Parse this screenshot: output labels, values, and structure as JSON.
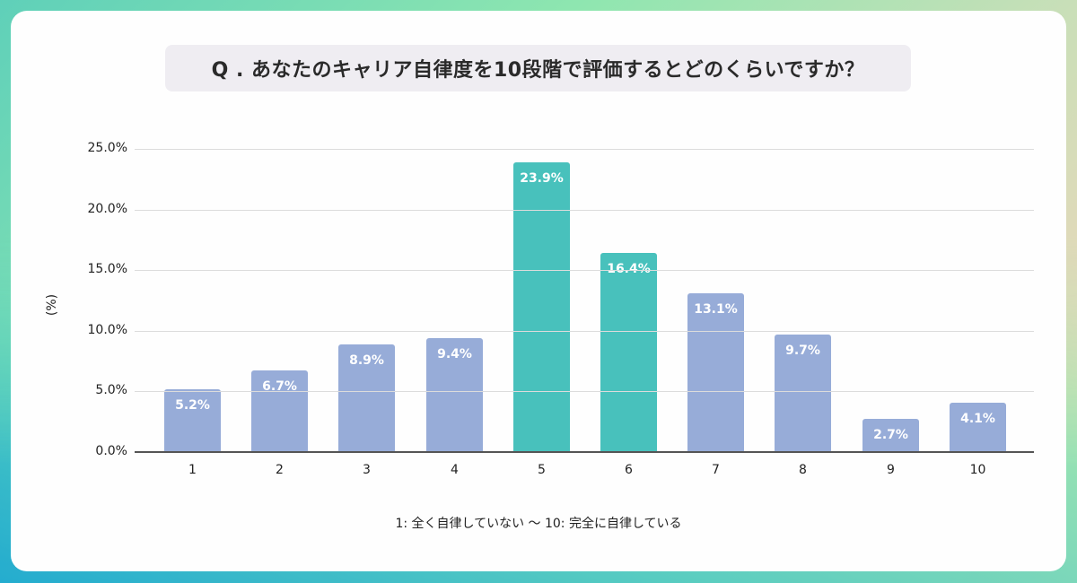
{
  "title": "Q . あなたのキャリア自律度を10段階で評価するとどのくらいですか？",
  "colors": {
    "highlight": "#48c1bc",
    "normal": "#97acd8",
    "grid": "#dcdcdc",
    "title_bg": "#efedf2"
  },
  "chart_data": {
    "type": "bar",
    "title": "Q . あなたのキャリア自律度を10段階で評価するとどのくらいですか？",
    "categories": [
      "1",
      "2",
      "3",
      "4",
      "5",
      "6",
      "7",
      "8",
      "9",
      "10"
    ],
    "values": [
      5.2,
      6.7,
      8.9,
      9.4,
      23.9,
      16.4,
      13.1,
      9.7,
      2.7,
      4.1
    ],
    "data_labels": [
      "5.2%",
      "6.7%",
      "8.9%",
      "9.4%",
      "23.9%",
      "16.4%",
      "13.1%",
      "9.7%",
      "2.7%",
      "4.1%"
    ],
    "highlighted": [
      false,
      false,
      false,
      false,
      true,
      true,
      false,
      false,
      false,
      false
    ],
    "xlabel": "1: 全く自律していない 〜 10: 完全に自律している",
    "ylabel": "(%)",
    "ylim": [
      0,
      25
    ],
    "yticks": [
      "0.0%",
      "5.0%",
      "10.0%",
      "15.0%",
      "20.0%",
      "25.0%"
    ],
    "grid": true,
    "legend": null
  }
}
